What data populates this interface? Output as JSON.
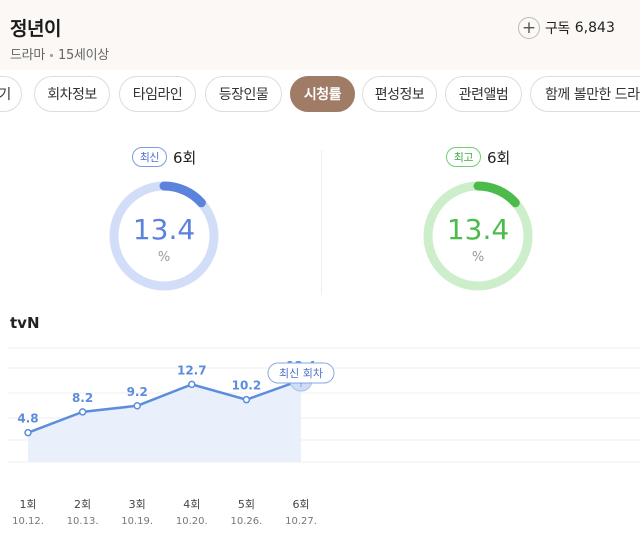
{
  "header": {
    "title": "정년이",
    "genre": "드라마",
    "age_rating": "15세이상",
    "subscribe_label": "구독",
    "subscribe_count": "6,843",
    "plus_icon": "+"
  },
  "tabs": [
    {
      "label": "~기"
    },
    {
      "label": "회차정보"
    },
    {
      "label": "타임라인"
    },
    {
      "label": "등장인물"
    },
    {
      "label": "시청률",
      "active": true
    },
    {
      "label": "편성정보"
    },
    {
      "label": "관련앨범"
    },
    {
      "label": "함께 볼만한 드라마"
    }
  ],
  "ratings": {
    "latest": {
      "badge": "최신",
      "episode": "6회",
      "value": "13.4",
      "unit": "%",
      "fraction": 0.134,
      "color": "#5b82dc",
      "track": "#d2def7"
    },
    "highest": {
      "badge": "최고",
      "episode": "6회",
      "value": "13.4",
      "unit": "%",
      "fraction": 0.134,
      "color": "#4cbb4c",
      "track": "#cdeecb"
    }
  },
  "channel": "tvN",
  "chart_data": {
    "type": "line",
    "categories": [
      "1회",
      "2회",
      "3회",
      "4회",
      "5회",
      "6회"
    ],
    "dates": [
      "10.12.",
      "10.13.",
      "10.19.",
      "10.20.",
      "10.26.",
      "10.27."
    ],
    "values": [
      4.8,
      8.2,
      9.2,
      12.7,
      10.2,
      13.4
    ],
    "value_labels": [
      "4.8",
      "8.2",
      "9.2",
      "12.7",
      "10.2",
      "13.4"
    ],
    "annotation": "최신 회차",
    "line_color": "#5b8ddc",
    "fill_color": "#e9f0fc"
  }
}
